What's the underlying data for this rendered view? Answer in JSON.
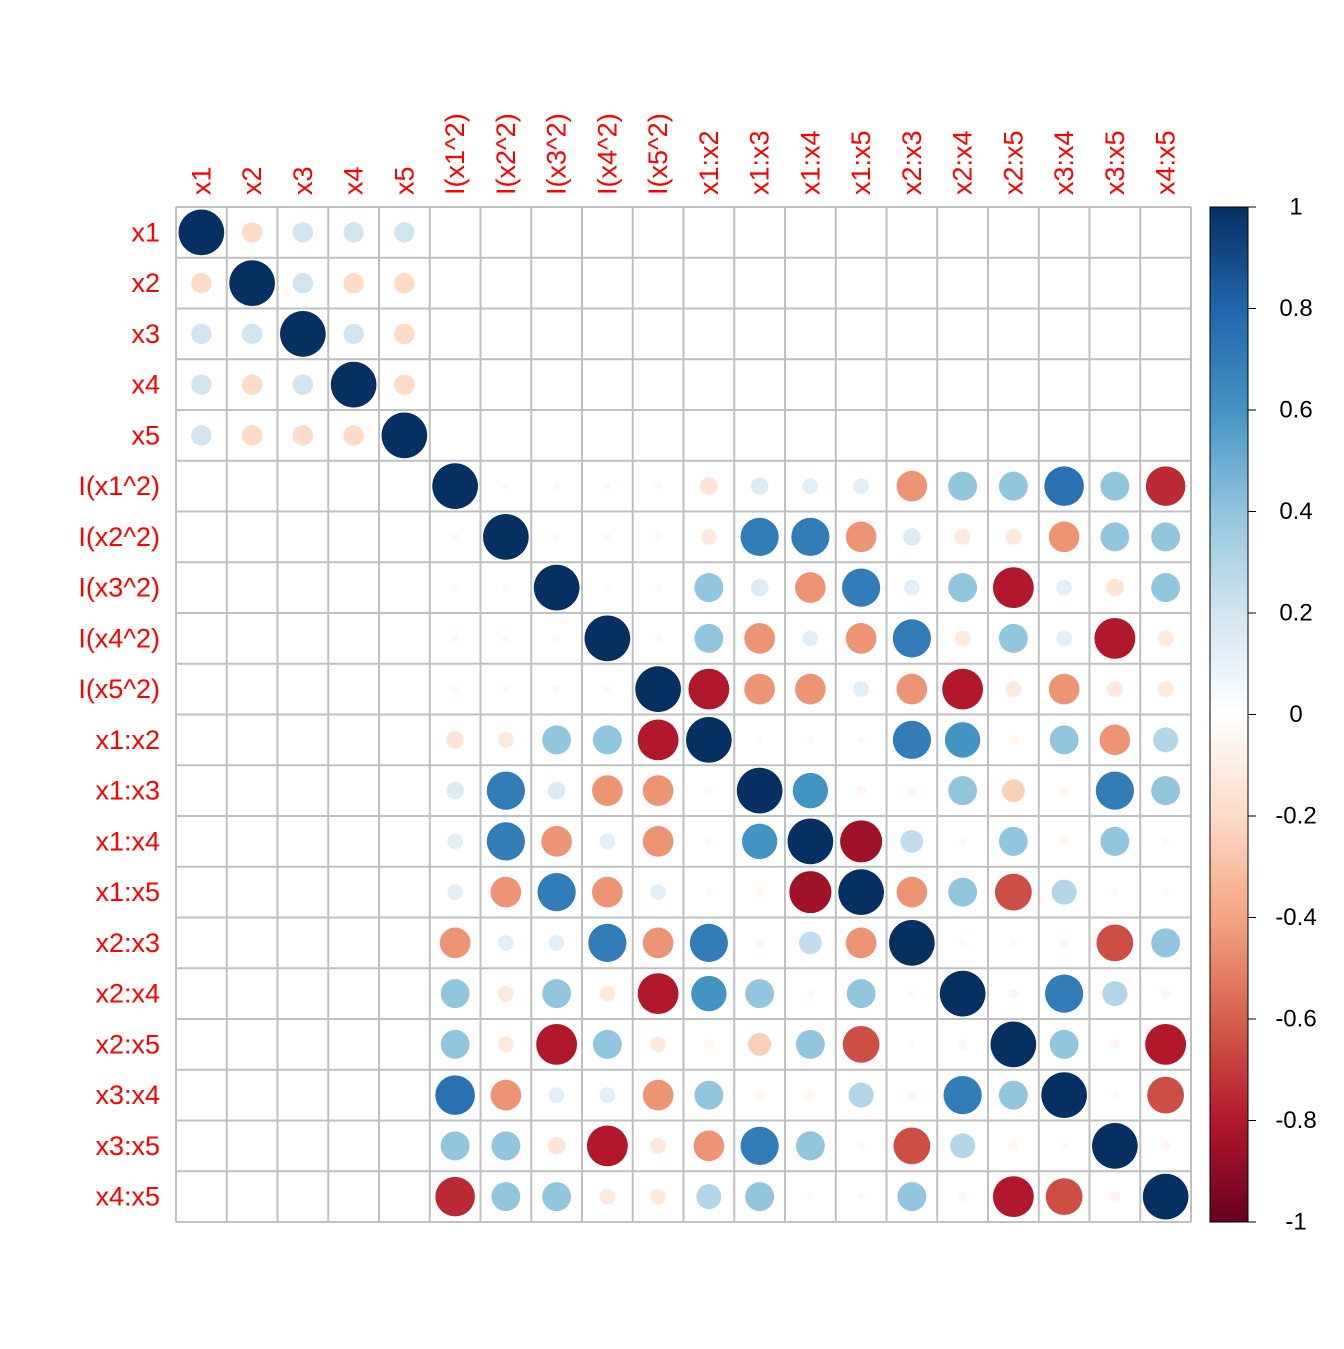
{
  "chart_data": {
    "type": "heatmap",
    "style": "corrplot-circle",
    "variables": [
      "x1",
      "x2",
      "x3",
      "x4",
      "x5",
      "I(x1^2)",
      "I(x2^2)",
      "I(x3^2)",
      "I(x4^2)",
      "I(x5^2)",
      "x1:x2",
      "x1:x3",
      "x1:x4",
      "x1:x5",
      "x2:x3",
      "x2:x4",
      "x2:x5",
      "x3:x4",
      "x3:x5",
      "x4:x5"
    ],
    "matrix": [
      [
        1,
        -0.2,
        0.2,
        0.2,
        0.2,
        null,
        null,
        null,
        null,
        null,
        null,
        null,
        null,
        null,
        null,
        null,
        null,
        null,
        null,
        null
      ],
      [
        -0.2,
        1,
        0.2,
        -0.2,
        -0.2,
        null,
        null,
        null,
        null,
        null,
        null,
        null,
        null,
        null,
        null,
        null,
        null,
        null,
        null,
        null
      ],
      [
        0.2,
        0.2,
        1,
        0.2,
        -0.2,
        null,
        null,
        null,
        null,
        null,
        null,
        null,
        null,
        null,
        null,
        null,
        null,
        null,
        null,
        null
      ],
      [
        0.2,
        -0.2,
        0.2,
        1,
        -0.2,
        null,
        null,
        null,
        null,
        null,
        null,
        null,
        null,
        null,
        null,
        null,
        null,
        null,
        null,
        null
      ],
      [
        0.2,
        -0.2,
        -0.2,
        -0.2,
        1,
        null,
        null,
        null,
        null,
        null,
        null,
        null,
        null,
        null,
        null,
        null,
        null,
        null,
        null,
        null
      ],
      [
        null,
        null,
        null,
        null,
        null,
        1,
        0.03,
        0.03,
        0.03,
        0.03,
        -0.15,
        0.15,
        0.12,
        0.12,
        -0.45,
        0.4,
        0.4,
        0.75,
        0.4,
        -0.75
      ],
      [
        null,
        null,
        null,
        null,
        null,
        0.03,
        1,
        0.03,
        0.03,
        0.03,
        -0.12,
        0.7,
        0.7,
        -0.45,
        0.15,
        -0.12,
        -0.12,
        -0.45,
        0.4,
        0.4
      ],
      [
        null,
        null,
        null,
        null,
        null,
        0.03,
        0.03,
        1,
        0.03,
        0.03,
        0.4,
        0.15,
        -0.45,
        0.7,
        0.12,
        0.4,
        -0.8,
        0.12,
        -0.15,
        0.4
      ],
      [
        null,
        null,
        null,
        null,
        null,
        0.03,
        0.03,
        0.03,
        1,
        0.03,
        0.4,
        -0.45,
        0.12,
        -0.45,
        0.7,
        -0.12,
        0.4,
        0.12,
        -0.8,
        -0.12
      ],
      [
        null,
        null,
        null,
        null,
        null,
        0.03,
        0.03,
        0.03,
        0.03,
        1,
        -0.8,
        -0.45,
        -0.45,
        0.12,
        -0.45,
        -0.8,
        -0.12,
        -0.45,
        -0.12,
        -0.12
      ],
      [
        null,
        null,
        null,
        null,
        null,
        -0.15,
        -0.12,
        0.4,
        0.4,
        -0.8,
        1,
        0.03,
        0.03,
        0.03,
        0.7,
        0.6,
        -0.05,
        0.4,
        -0.45,
        0.3
      ],
      [
        null,
        null,
        null,
        null,
        null,
        0.15,
        0.7,
        0.15,
        -0.45,
        -0.45,
        0.03,
        1,
        0.6,
        -0.05,
        -0.05,
        0.4,
        -0.25,
        -0.05,
        0.7,
        0.4
      ],
      [
        null,
        null,
        null,
        null,
        null,
        0.12,
        0.7,
        -0.45,
        0.12,
        -0.45,
        0.03,
        0.6,
        1,
        -0.85,
        0.25,
        0.03,
        0.4,
        -0.05,
        0.4,
        0.03
      ],
      [
        null,
        null,
        null,
        null,
        null,
        0.12,
        -0.45,
        0.7,
        -0.45,
        0.12,
        0.03,
        -0.05,
        -0.85,
        1,
        -0.45,
        0.4,
        -0.65,
        0.3,
        0.03,
        0.03
      ],
      [
        null,
        null,
        null,
        null,
        null,
        -0.45,
        0.12,
        0.12,
        0.7,
        -0.45,
        0.7,
        -0.05,
        0.25,
        -0.45,
        1,
        0.03,
        0.03,
        -0.05,
        -0.65,
        0.4
      ],
      [
        null,
        null,
        null,
        null,
        null,
        0.4,
        -0.12,
        0.4,
        -0.12,
        -0.8,
        0.6,
        0.4,
        0.03,
        0.4,
        0.03,
        1,
        -0.05,
        0.7,
        0.3,
        -0.05
      ],
      [
        null,
        null,
        null,
        null,
        null,
        0.4,
        -0.12,
        -0.8,
        0.4,
        -0.12,
        -0.05,
        -0.25,
        0.4,
        -0.65,
        0.03,
        -0.05,
        1,
        0.4,
        -0.05,
        -0.8
      ],
      [
        null,
        null,
        null,
        null,
        null,
        0.75,
        -0.45,
        0.12,
        0.12,
        -0.45,
        0.4,
        -0.05,
        -0.05,
        0.3,
        -0.05,
        0.7,
        0.4,
        1,
        0.03,
        -0.65
      ],
      [
        null,
        null,
        null,
        null,
        null,
        0.4,
        0.4,
        -0.15,
        -0.8,
        -0.12,
        -0.45,
        0.7,
        0.4,
        0.03,
        -0.65,
        0.3,
        -0.05,
        0.03,
        1,
        -0.05
      ],
      [
        null,
        null,
        null,
        null,
        null,
        -0.75,
        0.4,
        0.4,
        -0.12,
        -0.12,
        0.3,
        0.4,
        0.03,
        0.03,
        0.4,
        -0.05,
        -0.8,
        -0.65,
        -0.05,
        1
      ]
    ],
    "legend_ticks": [
      "1",
      "0.8",
      "0.6",
      "0.4",
      "0.2",
      "0",
      "-0.2",
      "-0.4",
      "-0.6",
      "-0.8",
      "-1"
    ],
    "value_range": [
      -1,
      1
    ],
    "label_color": "#FF0000",
    "grid_color": "#C0C0C0",
    "palette": [
      "#67001F",
      "#B2182B",
      "#D6604D",
      "#F4A582",
      "#FDDBC7",
      "#FFFFFF",
      "#D1E5F0",
      "#92C5DE",
      "#4393C3",
      "#2166AC",
      "#053061"
    ]
  }
}
